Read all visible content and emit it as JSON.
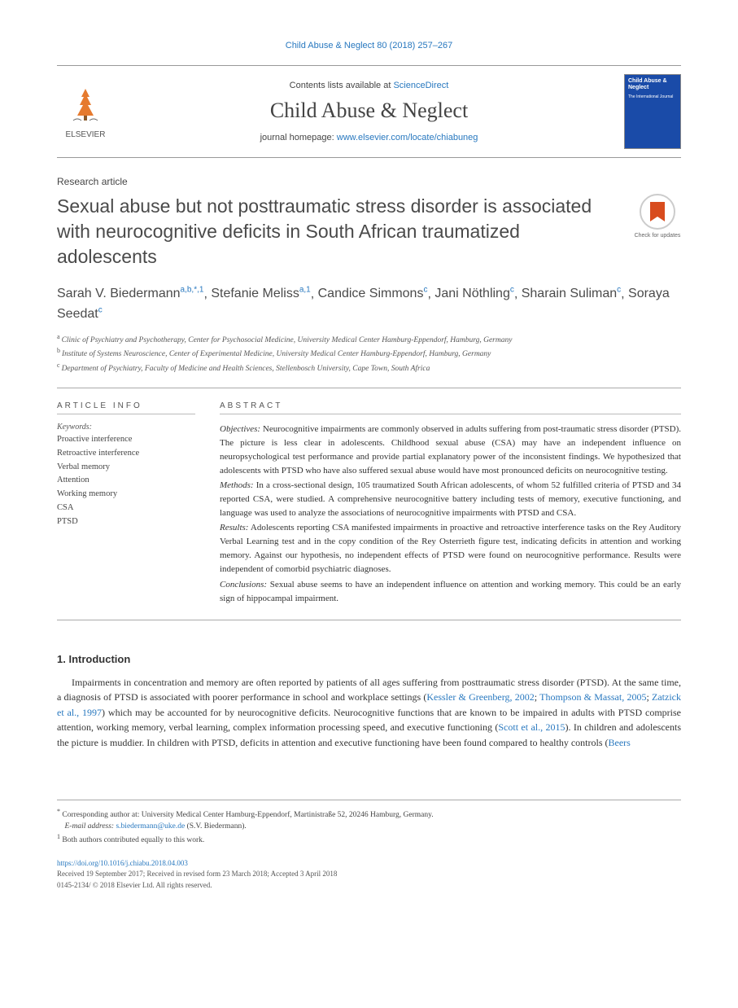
{
  "header": {
    "citation": "Child Abuse & Neglect 80 (2018) 257–267",
    "contents_prefix": "Contents lists available at ",
    "contents_link": "ScienceDirect",
    "journal_name": "Child Abuse & Neglect",
    "homepage_prefix": "journal homepage: ",
    "homepage_url": "www.elsevier.com/locate/chiabuneg",
    "elsevier_label": "ELSEVIER",
    "cover_text": "Child Abuse & Neglect",
    "cover_sub": "The International Journal"
  },
  "article": {
    "type": "Research article",
    "title": "Sexual abuse but not posttraumatic stress disorder is associated with neurocognitive deficits in South African traumatized adolescents",
    "updates_label": "Check for updates"
  },
  "authors": {
    "list": [
      {
        "name": "Sarah V. Biedermann",
        "aff": "a,b,",
        "marks": "*,1"
      },
      {
        "name": "Stefanie Meliss",
        "aff": "a,",
        "marks": "1"
      },
      {
        "name": "Candice Simmons",
        "aff": "c",
        "marks": ""
      },
      {
        "name": "Jani Nöthling",
        "aff": "c",
        "marks": ""
      },
      {
        "name": "Sharain Suliman",
        "aff": "c",
        "marks": ""
      },
      {
        "name": "Soraya Seedat",
        "aff": "c",
        "marks": ""
      }
    ]
  },
  "affiliations": [
    {
      "key": "a",
      "text": "Clinic of Psychiatry and Psychotherapy, Center for Psychosocial Medicine, University Medical Center Hamburg-Eppendorf, Hamburg, Germany"
    },
    {
      "key": "b",
      "text": "Institute of Systems Neuroscience, Center of Experimental Medicine, University Medical Center Hamburg-Eppendorf, Hamburg, Germany"
    },
    {
      "key": "c",
      "text": "Department of Psychiatry, Faculty of Medicine and Health Sciences, Stellenbosch University, Cape Town, South Africa"
    }
  ],
  "info": {
    "heading": "ARTICLE INFO",
    "keywords_label": "Keywords:",
    "keywords": [
      "Proactive interference",
      "Retroactive interference",
      "Verbal memory",
      "Attention",
      "Working memory",
      "CSA",
      "PTSD"
    ]
  },
  "abstract": {
    "heading": "ABSTRACT",
    "objectives_label": "Objectives:",
    "objectives": " Neurocognitive impairments are commonly observed in adults suffering from post-traumatic stress disorder (PTSD). The picture is less clear in adolescents. Childhood sexual abuse (CSA) may have an independent influence on neuropsychological test performance and provide partial explanatory power of the inconsistent findings. We hypothesized that adolescents with PTSD who have also suffered sexual abuse would have most pronounced deficits on neurocognitive testing.",
    "methods_label": "Methods:",
    "methods": " In a cross-sectional design, 105 traumatized South African adolescents, of whom 52 fulfilled criteria of PTSD and 34 reported CSA, were studied. A comprehensive neurocognitive battery including tests of memory, executive functioning, and language was used to analyze the associations of neurocognitive impairments with PTSD and CSA.",
    "results_label": "Results:",
    "results": " Adolescents reporting CSA manifested impairments in proactive and retroactive interference tasks on the Rey Auditory Verbal Learning test and in the copy condition of the Rey Osterrieth figure test, indicating deficits in attention and working memory. Against our hypothesis, no independent effects of PTSD were found on neurocognitive performance. Results were independent of comorbid psychiatric diagnoses.",
    "conclusions_label": "Conclusions:",
    "conclusions": " Sexual abuse seems to have an independent influence on attention and working memory. This could be an early sign of hippocampal impairment."
  },
  "introduction": {
    "heading": "1. Introduction",
    "p1_a": "Impairments in concentration and memory are often reported by patients of all ages suffering from posttraumatic stress disorder (PTSD). At the same time, a diagnosis of PTSD is associated with poorer performance in school and workplace settings (",
    "cite1": "Kessler & Greenberg, 2002",
    "sep1": "; ",
    "cite2": "Thompson & Massat, 2005",
    "sep2": "; ",
    "cite3": "Zatzick et al., 1997",
    "p1_b": ") which may be accounted for by neurocognitive deficits. Neurocognitive functions that are known to be impaired in adults with PTSD comprise attention, working memory, verbal learning, complex information processing speed, and executive functioning (",
    "cite4": "Scott et al., 2015",
    "p1_c": "). In children and adolescents the picture is muddier. In children with PTSD, deficits in attention and executive functioning have been found compared to healthy controls (",
    "cite5": "Beers"
  },
  "footnotes": {
    "corr_mark": "*",
    "corr_text": " Corresponding author at: University Medical Center Hamburg-Eppendorf, Martinistraße 52, 20246 Hamburg, Germany.",
    "email_label": "E-mail address: ",
    "email": "s.biedermann@uke.de",
    "email_name": " (S.V. Biedermann).",
    "equal_mark": "1",
    "equal_text": " Both authors contributed equally to this work."
  },
  "footer": {
    "doi": "https://doi.org/10.1016/j.chiabu.2018.04.003",
    "received": "Received 19 September 2017; Received in revised form 23 March 2018; Accepted 3 April 2018",
    "issn_copy": "0145-2134/ © 2018 Elsevier Ltd. All rights reserved."
  },
  "colors": {
    "link": "#2878bf",
    "text": "#333333",
    "muted": "#555555",
    "cover_bg": "#1a4ba8",
    "badge_orange": "#d84c1e"
  }
}
